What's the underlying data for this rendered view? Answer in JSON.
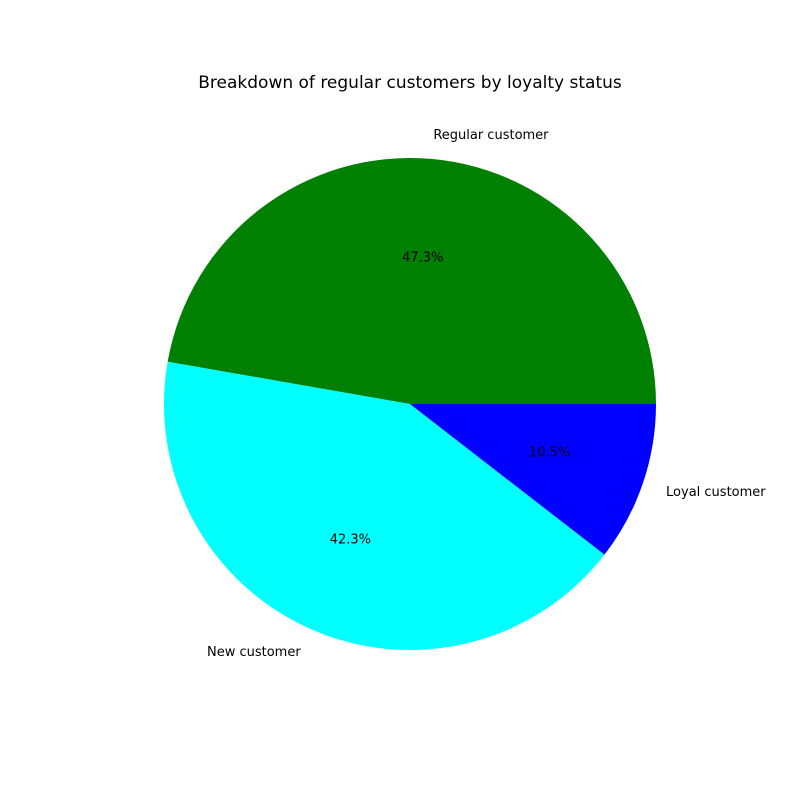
{
  "chart_data": {
    "type": "pie",
    "title": "Breakdown of regular customers by loyalty status",
    "slices": [
      {
        "label": "Regular customer",
        "value": 47.3,
        "pct_label": "47.3%",
        "color": "#008000"
      },
      {
        "label": "New customer",
        "value": 42.3,
        "pct_label": "42.3%",
        "color": "#00ffff"
      },
      {
        "label": "Loyal customer",
        "value": 10.5,
        "pct_label": "10.5%",
        "color": "#0000ff"
      }
    ],
    "start_angle_deg": 0,
    "direction": "counterclockwise"
  }
}
